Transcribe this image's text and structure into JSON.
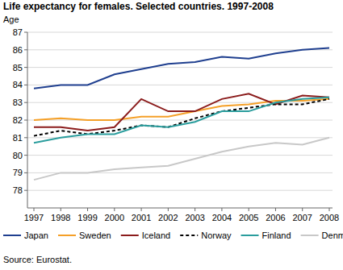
{
  "chart_data": {
    "type": "line",
    "title": "Life expectancy for females. Selected countries. 1997-2008",
    "y_label": "Age",
    "source": "Source: Eurostat.",
    "categories": [
      "1997",
      "1998",
      "1999",
      "2000",
      "2001",
      "2002",
      "2003",
      "2004",
      "2005",
      "2006",
      "2007",
      "2008"
    ],
    "series": [
      {
        "name": "Japan",
        "color": "#1f3f8f",
        "line_style": "solid",
        "values": [
          83.8,
          84.0,
          84.0,
          84.6,
          84.9,
          85.2,
          85.3,
          85.6,
          85.5,
          85.8,
          86.0,
          86.1
        ]
      },
      {
        "name": "Sweden",
        "color": "#f5a028",
        "line_style": "solid",
        "values": [
          82.0,
          82.1,
          82.0,
          82.0,
          82.2,
          82.2,
          82.5,
          82.8,
          82.9,
          83.1,
          83.1,
          83.2
        ]
      },
      {
        "name": "Iceland",
        "color": "#8b1c1c",
        "line_style": "solid",
        "values": [
          81.6,
          81.6,
          81.4,
          81.6,
          83.2,
          82.5,
          82.5,
          83.2,
          83.5,
          82.9,
          83.4,
          83.3
        ]
      },
      {
        "name": "Norway",
        "color": "#000000",
        "line_style": "dashed",
        "values": [
          81.1,
          81.4,
          81.2,
          81.4,
          81.7,
          81.6,
          82.1,
          82.5,
          82.7,
          82.9,
          82.9,
          83.2
        ]
      },
      {
        "name": "Finland",
        "color": "#2a9d9d",
        "line_style": "solid",
        "values": [
          80.7,
          81.0,
          81.2,
          81.2,
          81.7,
          81.6,
          81.9,
          82.5,
          82.5,
          83.0,
          83.2,
          83.3
        ]
      },
      {
        "name": "Denmark",
        "color": "#c8c8c8",
        "line_style": "solid",
        "values": [
          78.6,
          79.0,
          79.0,
          79.2,
          79.3,
          79.4,
          79.8,
          80.2,
          80.5,
          80.7,
          80.6,
          81.0
        ]
      }
    ],
    "ylim": [
      77,
      87
    ],
    "yticks": [
      78,
      79,
      80,
      81,
      82,
      83,
      84,
      85,
      86,
      87
    ],
    "grid": true,
    "legend": "bottom"
  }
}
